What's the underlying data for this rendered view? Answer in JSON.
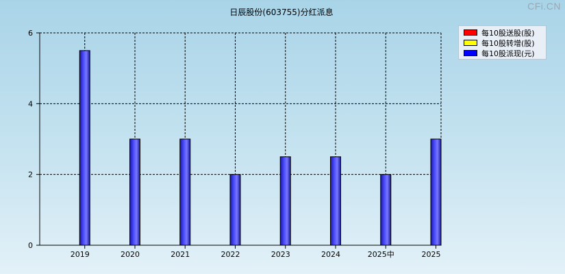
{
  "watermark": "CFi.CN",
  "chart_data": {
    "type": "bar",
    "title": "日辰股份(603755)分红派息",
    "xlabel": "",
    "ylabel": "",
    "ylim": [
      0,
      6
    ],
    "yticks": [
      "0",
      "2",
      "4",
      "6"
    ],
    "categories": [
      "2019",
      "2020",
      "2021",
      "2022",
      "2023",
      "2024",
      "2025中",
      "2025"
    ],
    "grid": true,
    "legend_position": "top-right",
    "series": [
      {
        "name": "每10股送股(股)",
        "color": "#ff0000",
        "values": [
          0,
          0,
          0,
          0,
          0,
          0,
          0,
          0
        ]
      },
      {
        "name": "每10股转增(股)",
        "color": "#ffff00",
        "values": [
          0,
          0,
          0,
          0,
          0,
          0,
          0,
          0
        ]
      },
      {
        "name": "每10股派现(元)",
        "color": "#0000ff",
        "values": [
          5.5,
          3,
          3,
          2,
          2.5,
          2.5,
          2,
          3
        ]
      }
    ]
  }
}
